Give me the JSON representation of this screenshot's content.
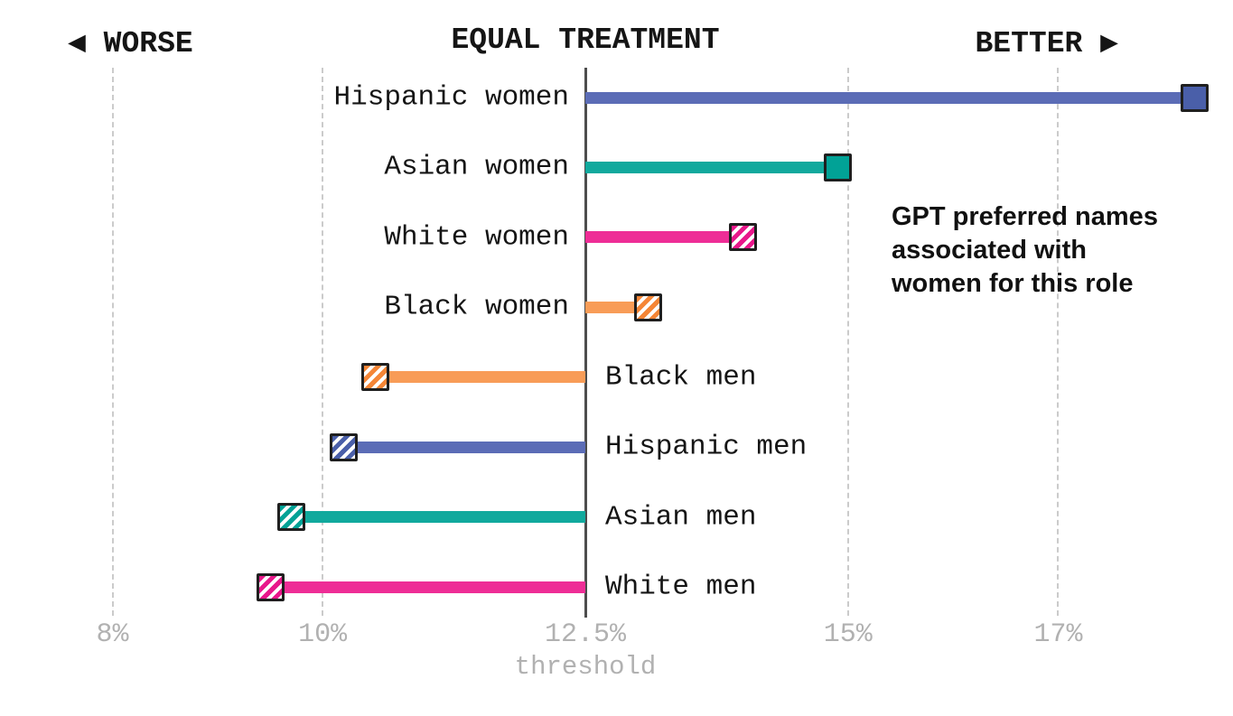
{
  "header": {
    "worse_label": "◀ WORSE",
    "equal_label": "EQUAL TREATMENT",
    "better_label": "BETTER ▶"
  },
  "annotation": {
    "text": "GPT preferred names\nassociated with\nwomen for this role"
  },
  "chart_data": {
    "type": "bar",
    "subtype": "horizontal-diverging-lollipop",
    "title": "",
    "xlabel": "threshold",
    "baseline_value": 12.5,
    "xlim": [
      6.9,
      18.7
    ],
    "grid": "dashed-vertical",
    "legend_position": "none",
    "xticks": [
      {
        "value": 8,
        "label": "8%"
      },
      {
        "value": 10,
        "label": "10%"
      },
      {
        "value": 12.5,
        "label": "12.5%"
      },
      {
        "value": 15,
        "label": "15%"
      },
      {
        "value": 17,
        "label": "17%"
      }
    ],
    "categories": [
      "Hispanic women",
      "Asian women",
      "White women",
      "Black women",
      "Black men",
      "Hispanic men",
      "Asian men",
      "White men"
    ],
    "values": [
      18.3,
      14.9,
      14.0,
      13.1,
      10.5,
      10.2,
      9.7,
      9.5
    ],
    "rows": [
      {
        "label": "Hispanic women",
        "value": 18.3,
        "side": "better",
        "bar_color": "#5b6cb6",
        "marker_color": "#4a5fa9",
        "marker_style": "solid"
      },
      {
        "label": "Asian women",
        "value": 14.9,
        "side": "better",
        "bar_color": "#11a99d",
        "marker_color": "#01a296",
        "marker_style": "solid"
      },
      {
        "label": "White women",
        "value": 14.0,
        "side": "better",
        "bar_color": "#ee2d96",
        "marker_color": "#e8188b",
        "marker_style": "hatched"
      },
      {
        "label": "Black women",
        "value": 13.1,
        "side": "better",
        "bar_color": "#f89c57",
        "marker_color": "#f58637",
        "marker_style": "hatched"
      },
      {
        "label": "Black men",
        "value": 10.5,
        "side": "worse",
        "bar_color": "#f89c57",
        "marker_color": "#f58637",
        "marker_style": "hatched"
      },
      {
        "label": "Hispanic men",
        "value": 10.2,
        "side": "worse",
        "bar_color": "#5b6cb6",
        "marker_color": "#4a5fa9",
        "marker_style": "hatched"
      },
      {
        "label": "Asian men",
        "value": 9.7,
        "side": "worse",
        "bar_color": "#11a99d",
        "marker_color": "#01a296",
        "marker_style": "hatched"
      },
      {
        "label": "White men",
        "value": 9.5,
        "side": "worse",
        "bar_color": "#ee2d96",
        "marker_color": "#e8188b",
        "marker_style": "hatched"
      }
    ],
    "colors": {
      "grid": "#cbcbcb",
      "baseline_line": "#4d4d4d",
      "tick_text": "#b1b1b1",
      "label_text": "#151515",
      "marker_border": "#1f1f1f"
    }
  }
}
